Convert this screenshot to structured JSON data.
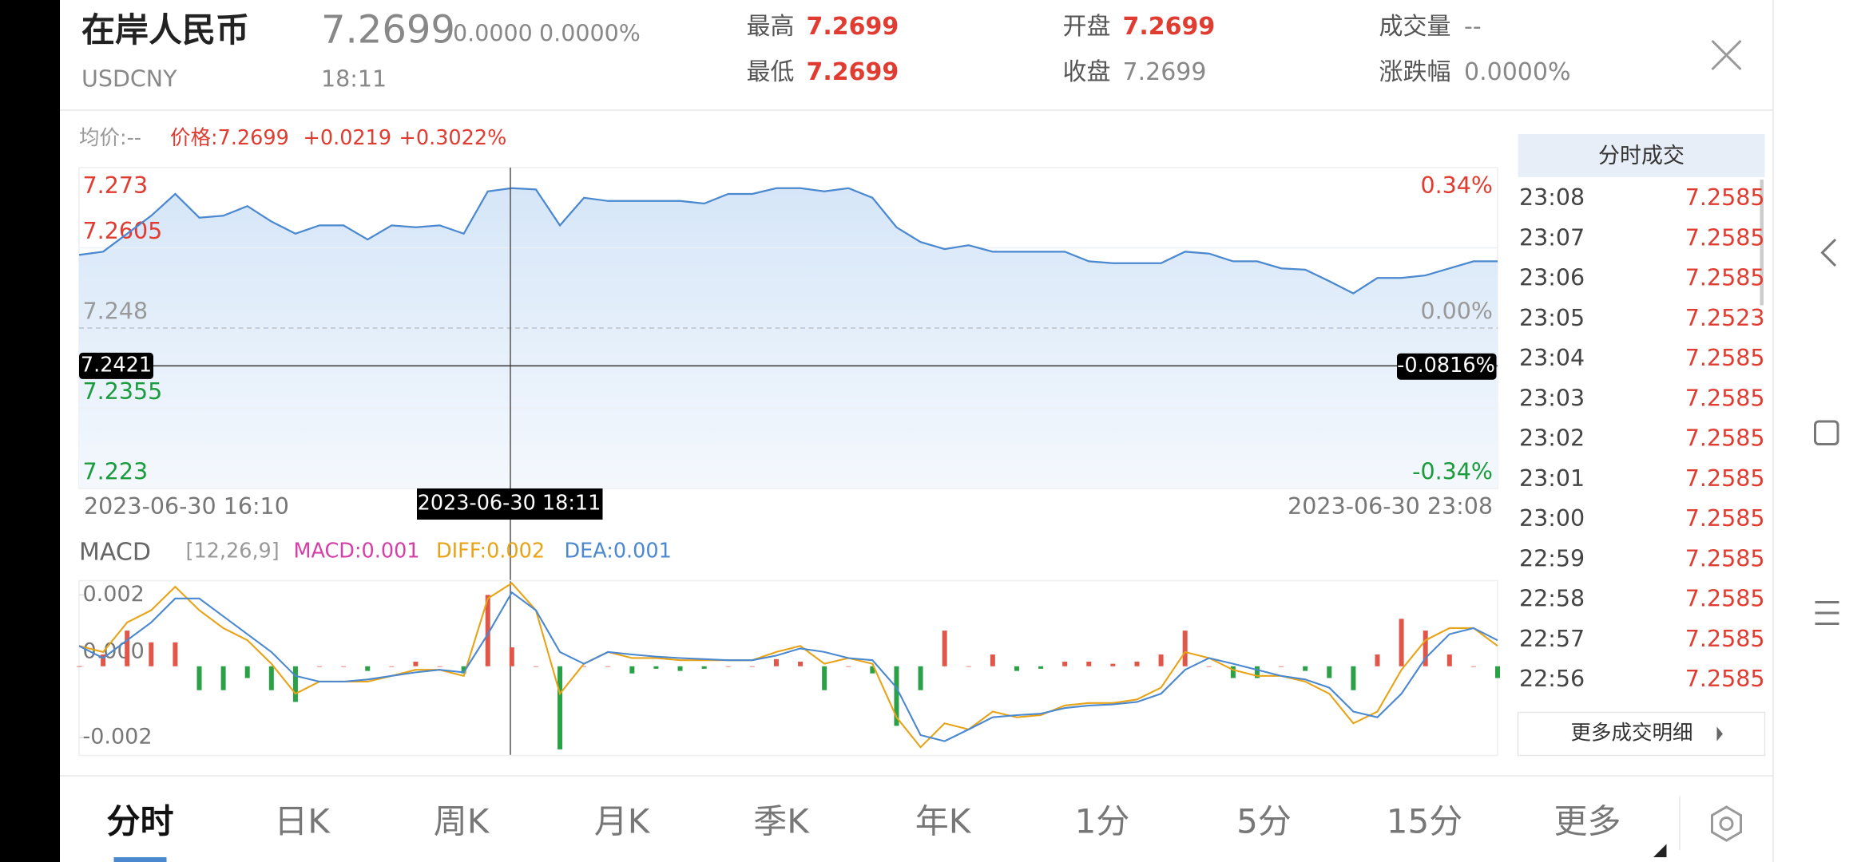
{
  "header": {
    "name": "在岸人民币",
    "code": "USDCNY",
    "price": "7.2699",
    "change": "0.0000",
    "change_pct": "0.0000%",
    "time": "18:11",
    "stats": [
      {
        "label": "最高",
        "value": "7.2699"
      },
      {
        "label": "最低",
        "value": "7.2699"
      },
      {
        "label": "开盘",
        "value": "7.2699"
      },
      {
        "label": "收盘",
        "value": "7.2699"
      },
      {
        "label": "成交量",
        "value": "--"
      },
      {
        "label": "涨跌幅",
        "value": "0.0000%"
      }
    ]
  },
  "info": {
    "avg": "均价:--",
    "price": "价格:7.2699",
    "change": "+0.0219",
    "pct": "+0.3022%"
  },
  "chart_data": [
    {
      "type": "line",
      "color": "#4a88d0",
      "ylim": [
        7.223,
        7.273
      ],
      "yticks": [
        7.273,
        7.2605,
        7.248,
        7.2355,
        7.223
      ],
      "y2lim": [
        -0.34,
        0.34
      ],
      "y2ticks": [
        {
          "value": 0.34,
          "label": "0.34%"
        },
        {
          "value": 0,
          "label": "0.00%"
        },
        {
          "value": -0.34,
          "label": "-0.34%"
        }
      ],
      "xlabels": [
        "2023-06-30 16:10",
        "2023-06-30 23:08"
      ],
      "crosshair": {
        "value": 7.2421,
        "percent": {
          "value": -0.0816,
          "label": "-0.0816%"
        },
        "time": "2023-06-30 18:11"
      },
      "values": [
        7.2594,
        7.2599,
        7.2627,
        7.2655,
        7.2689,
        7.2652,
        7.2655,
        7.267,
        7.2646,
        7.2627,
        7.264,
        7.264,
        7.2618,
        7.264,
        7.2637,
        7.264,
        7.2627,
        7.2693,
        7.2698,
        7.2696,
        7.264,
        7.2683,
        7.2678,
        7.2678,
        7.2678,
        7.2678,
        7.2674,
        7.2689,
        7.2689,
        7.2698,
        7.2698,
        7.2693,
        7.2698,
        7.2683,
        7.2637,
        7.2614,
        7.2603,
        7.2609,
        7.2599,
        7.2599,
        7.2599,
        7.2599,
        7.2584,
        7.2581,
        7.2581,
        7.2581,
        7.2599,
        7.2596,
        7.2584,
        7.2584,
        7.2573,
        7.2571,
        7.2553,
        7.2534,
        7.2558,
        7.2558,
        7.2562,
        7.2573,
        7.2584,
        7.2584
      ]
    },
    {
      "type": "macd",
      "title": "MACD",
      "params": "[12,26,9]",
      "up_color": "#e0574a",
      "down_color": "#2aa147",
      "ylim": [
        -0.0025,
        0.0024
      ],
      "yticks": [
        0.002,
        {
          "value": 0,
          "label": "0.000"
        },
        -0.002
      ],
      "series": [
        {
          "name": "MACD:0.001",
          "color": "#d63fa8",
          "values": [
            0,
            0.00033,
            0.001,
            0.00067,
            0.00067,
            -0.00067,
            -0.00067,
            -0.00033,
            -0.00067,
            -0.001,
            0,
            0,
            -0.00013,
            0,
            0.00013,
            0,
            -0.0002,
            0.002,
            0.00053,
            0,
            -0.00233,
            0,
            0,
            -0.0002,
            -7e-05,
            -0.00013,
            -7e-05,
            0,
            0,
            0.0002,
            0.00013,
            -0.00067,
            0,
            -0.0002,
            -0.00167,
            -0.00067,
            0.001,
            0,
            0.00033,
            -0.00013,
            -7e-05,
            0.00013,
            0.00013,
            7e-05,
            0.00013,
            0.00033,
            0.001,
            0,
            -0.00033,
            -0.00033,
            0,
            -0.00013,
            -0.00033,
            -0.00067,
            0.00033,
            0.00133,
            0.001,
            0.00033,
            0,
            -0.00033
          ]
        },
        {
          "name": "DIFF:0.002",
          "color": "#e8a317",
          "values": [
            0.00057,
            0.0004,
            0.00123,
            0.00157,
            0.00223,
            0.00157,
            0.00107,
            0.00073,
            7e-05,
            -0.00077,
            -0.00043,
            -0.00043,
            -0.00043,
            -0.00027,
            -0.0001,
            -0.0001,
            -0.00027,
            0.0019,
            0.00233,
            0.00157,
            -0.00077,
            7e-05,
            0.0004,
            0.00023,
            0.00023,
            0.00017,
            0.00017,
            0.00017,
            0.00017,
            0.0004,
            0.00057,
            7e-05,
            0.00023,
            7e-05,
            -0.00143,
            -0.00227,
            -0.0016,
            -0.00177,
            -0.00127,
            -0.00143,
            -0.00137,
            -0.0011,
            -0.00103,
            -0.00103,
            -0.00093,
            -0.0006,
            0.0004,
            0.00023,
            -0.0001,
            -0.00027,
            -0.00027,
            -0.00043,
            -0.00077,
            -0.0016,
            -0.00127,
            -0.0001,
            0.00073,
            0.00107,
            0.00107,
            0.00057
          ]
        },
        {
          "name": "DEA:0.001",
          "color": "#4a88d0",
          "values": [
            0.00057,
            0.00023,
            0.00073,
            0.00123,
            0.0019,
            0.0019,
            0.0014,
            0.0009,
            0.0004,
            -0.00027,
            -0.00043,
            -0.00043,
            -0.00037,
            -0.00027,
            -0.00017,
            -0.0001,
            -0.00017,
            0.0009,
            0.00207,
            0.00157,
            0.0004,
            7e-05,
            0.0004,
            0.00033,
            0.00027,
            0.00023,
            0.0002,
            0.00017,
            0.00017,
            0.0003,
            0.0005,
            0.0004,
            0.00023,
            0.00017,
            -0.0006,
            -0.00193,
            -0.0021,
            -0.00177,
            -0.00143,
            -0.00137,
            -0.00133,
            -0.00117,
            -0.0011,
            -0.00107,
            -0.001,
            -0.00077,
            -0.0001,
            0.00023,
            7e-05,
            -0.0001,
            -0.00027,
            -0.00037,
            -0.0006,
            -0.00127,
            -0.00143,
            -0.00077,
            0.00023,
            0.0009,
            0.00107,
            0.00073
          ]
        }
      ]
    }
  ],
  "trades": {
    "title": "分时成交",
    "rows": [
      [
        "23:08",
        "7.2585"
      ],
      [
        "23:07",
        "7.2585"
      ],
      [
        "23:06",
        "7.2585"
      ],
      [
        "23:05",
        "7.2523"
      ],
      [
        "23:04",
        "7.2585"
      ],
      [
        "23:03",
        "7.2585"
      ],
      [
        "23:02",
        "7.2585"
      ],
      [
        "23:01",
        "7.2585"
      ],
      [
        "23:00",
        "7.2585"
      ],
      [
        "22:59",
        "7.2585"
      ],
      [
        "22:58",
        "7.2585"
      ],
      [
        "22:57",
        "7.2585"
      ],
      [
        "22:56",
        "7.2585"
      ]
    ],
    "more": "更多成交明细"
  },
  "tabs": [
    "分时",
    "日K",
    "周K",
    "月K",
    "季K",
    "年K",
    "1分",
    "5分",
    "15分",
    "更多"
  ]
}
